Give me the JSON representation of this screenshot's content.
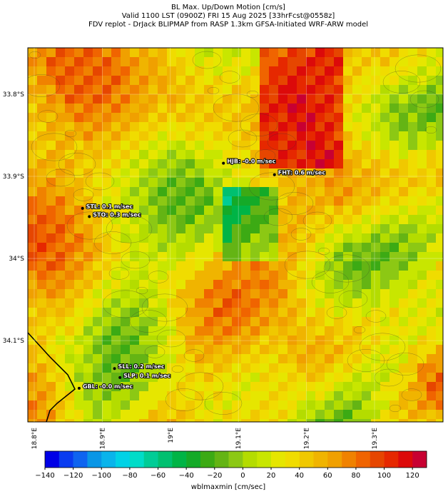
{
  "title_lines": [
    "BL Max. Up/Down Motion [cm/s]",
    "Valid 1100 LST (0900Z) FRI 15 Aug 2025 [33hrFcst@0558z]",
    "FDV replot - DrJack BLIPMAP from RASP 1.3km GFSA-Initiated WRF-ARW model"
  ],
  "map": {
    "xlim": [
      18.7906,
      19.4006
    ],
    "ylim": [
      -34.199,
      -33.7435
    ],
    "xticks": [
      {
        "value": 18.8,
        "label": "18.8°E"
      },
      {
        "value": 18.9,
        "label": "18.9°E"
      },
      {
        "value": 19.0,
        "label": "19°E"
      },
      {
        "value": 19.1,
        "label": "19.1°E"
      },
      {
        "value": 19.2,
        "label": "19.2°E"
      },
      {
        "value": 19.3,
        "label": "19.3°E"
      }
    ],
    "yticks": [
      {
        "value": -33.8,
        "label": "33.8°S"
      },
      {
        "value": -33.9,
        "label": "33.9°S"
      },
      {
        "value": -34.0,
        "label": "34°S"
      },
      {
        "value": -34.1,
        "label": "34.1°S"
      }
    ],
    "stations": [
      {
        "label": "HJB: -0.0 m/sec",
        "lon": 19.078,
        "lat": -33.884
      },
      {
        "label": "FHT: 0.6 m/sec",
        "lon": 19.153,
        "lat": -33.898
      },
      {
        "label": "STL: 0.1 m/sec",
        "lon": 18.871,
        "lat": -33.939
      },
      {
        "label": "STO: 0.3 m/sec",
        "lon": 18.881,
        "lat": -33.949
      },
      {
        "label": "SLL: 0.2 m/sec",
        "lon": 18.918,
        "lat": -34.134
      },
      {
        "label": "SLP: 0.1 m/sec",
        "lon": 18.926,
        "lat": -34.145
      },
      {
        "label": "GBL: -0.0 m/sec",
        "lon": 18.866,
        "lat": -34.158
      }
    ]
  },
  "colorbar": {
    "label": "wblmaxmin [cm/sec]",
    "lim": [
      -140,
      130
    ],
    "ticks": [
      {
        "value": -140,
        "label": "−140"
      },
      {
        "value": -120,
        "label": "−120"
      },
      {
        "value": -100,
        "label": "−100"
      },
      {
        "value": -80,
        "label": "−80"
      },
      {
        "value": -60,
        "label": "−60"
      },
      {
        "value": -40,
        "label": "−40"
      },
      {
        "value": -20,
        "label": "−20"
      },
      0,
      20,
      40,
      60,
      80,
      100,
      120
    ],
    "colors": [
      "#0000e6",
      "#0a3cf0",
      "#0f64f0",
      "#0a96e6",
      "#0ab4eb",
      "#00d2e6",
      "#00dcc8",
      "#00cc96",
      "#00c070",
      "#00b446",
      "#14aa28",
      "#3caa14",
      "#64b414",
      "#8cc814",
      "#b4dc00",
      "#c8e600",
      "#e6e600",
      "#f0dc00",
      "#f0c800",
      "#f0b400",
      "#f0a000",
      "#f08200",
      "#f06400",
      "#e64600",
      "#e62800",
      "#dc0a0a",
      "#c80032"
    ]
  }
}
